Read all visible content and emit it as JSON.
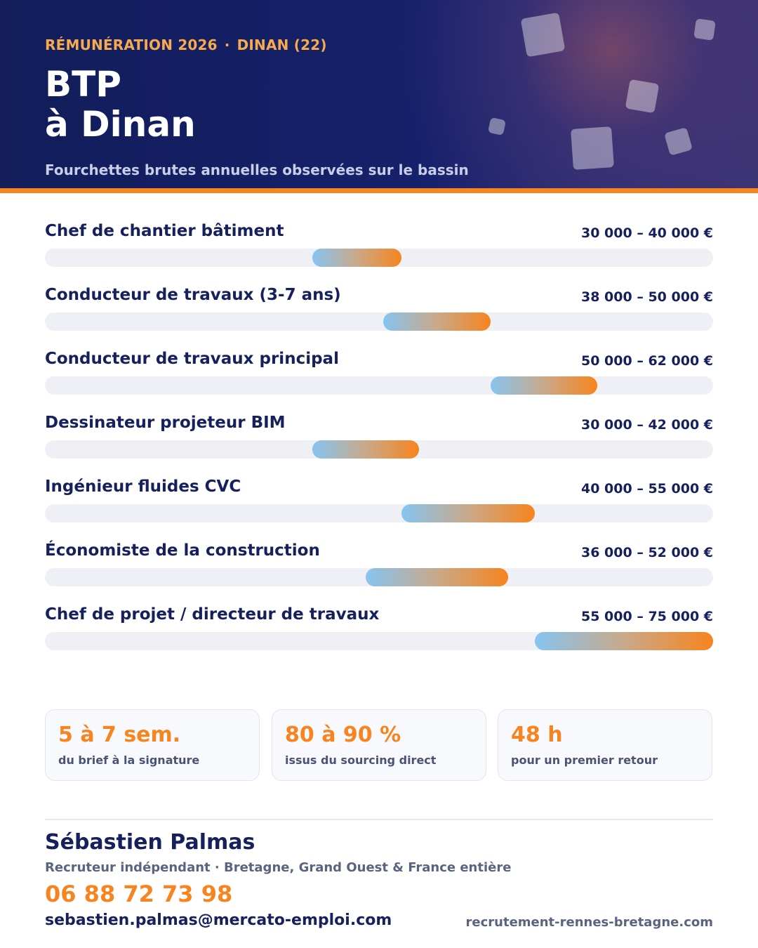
{
  "header": {
    "kicker_left": "RÉMUNÉRATION 2026",
    "kicker_sep": "·",
    "kicker_right": "DINAN (22)",
    "title_line1": "BTP",
    "title_line2": "à Dinan",
    "subtitle": "Fourchettes brutes annuelles observées sur le bassin"
  },
  "chart_data": {
    "type": "bar",
    "subtype": "range",
    "xlim": [
      0,
      75000
    ],
    "grid": false,
    "legend": "none",
    "categories": [
      "Chef de chantier bâtiment",
      "Conducteur de travaux (3-7 ans)",
      "Conducteur de travaux principal",
      "Dessinateur projeteur BIM",
      "Ingénieur fluides CVC",
      "Économiste de la construction",
      "Chef de projet / directeur de travaux"
    ],
    "ranges": [
      [
        30000,
        40000
      ],
      [
        38000,
        50000
      ],
      [
        50000,
        62000
      ],
      [
        30000,
        42000
      ],
      [
        40000,
        55000
      ],
      [
        36000,
        52000
      ],
      [
        55000,
        75000
      ]
    ],
    "range_labels": [
      "30 000 – 40 000 €",
      "38 000 – 50 000 €",
      "50 000 – 62 000 €",
      "30 000 – 42 000 €",
      "40 000 – 55 000 €",
      "36 000 – 52 000 €",
      "55 000 – 75 000 €"
    ]
  },
  "stats": [
    {
      "value": "5 à 7 sem.",
      "caption": "du brief à la signature"
    },
    {
      "value": "80 à 90 %",
      "caption": "issus du sourcing direct"
    },
    {
      "value": "48 h",
      "caption": "pour un premier retour"
    }
  ],
  "contact": {
    "name": "Sébastien Palmas",
    "role": "Recruteur indépendant · Bretagne, Grand Ouest & France entière",
    "phone": "06 88 72 73 98",
    "email": "sebastien.palmas@mercato-emploi.com",
    "website": "recrutement-rennes-bretagne.com"
  },
  "colors": {
    "navy": "#15205c",
    "orange": "#f7841e",
    "track": "#eef0f6",
    "gradient_start": "#86c4f0"
  }
}
